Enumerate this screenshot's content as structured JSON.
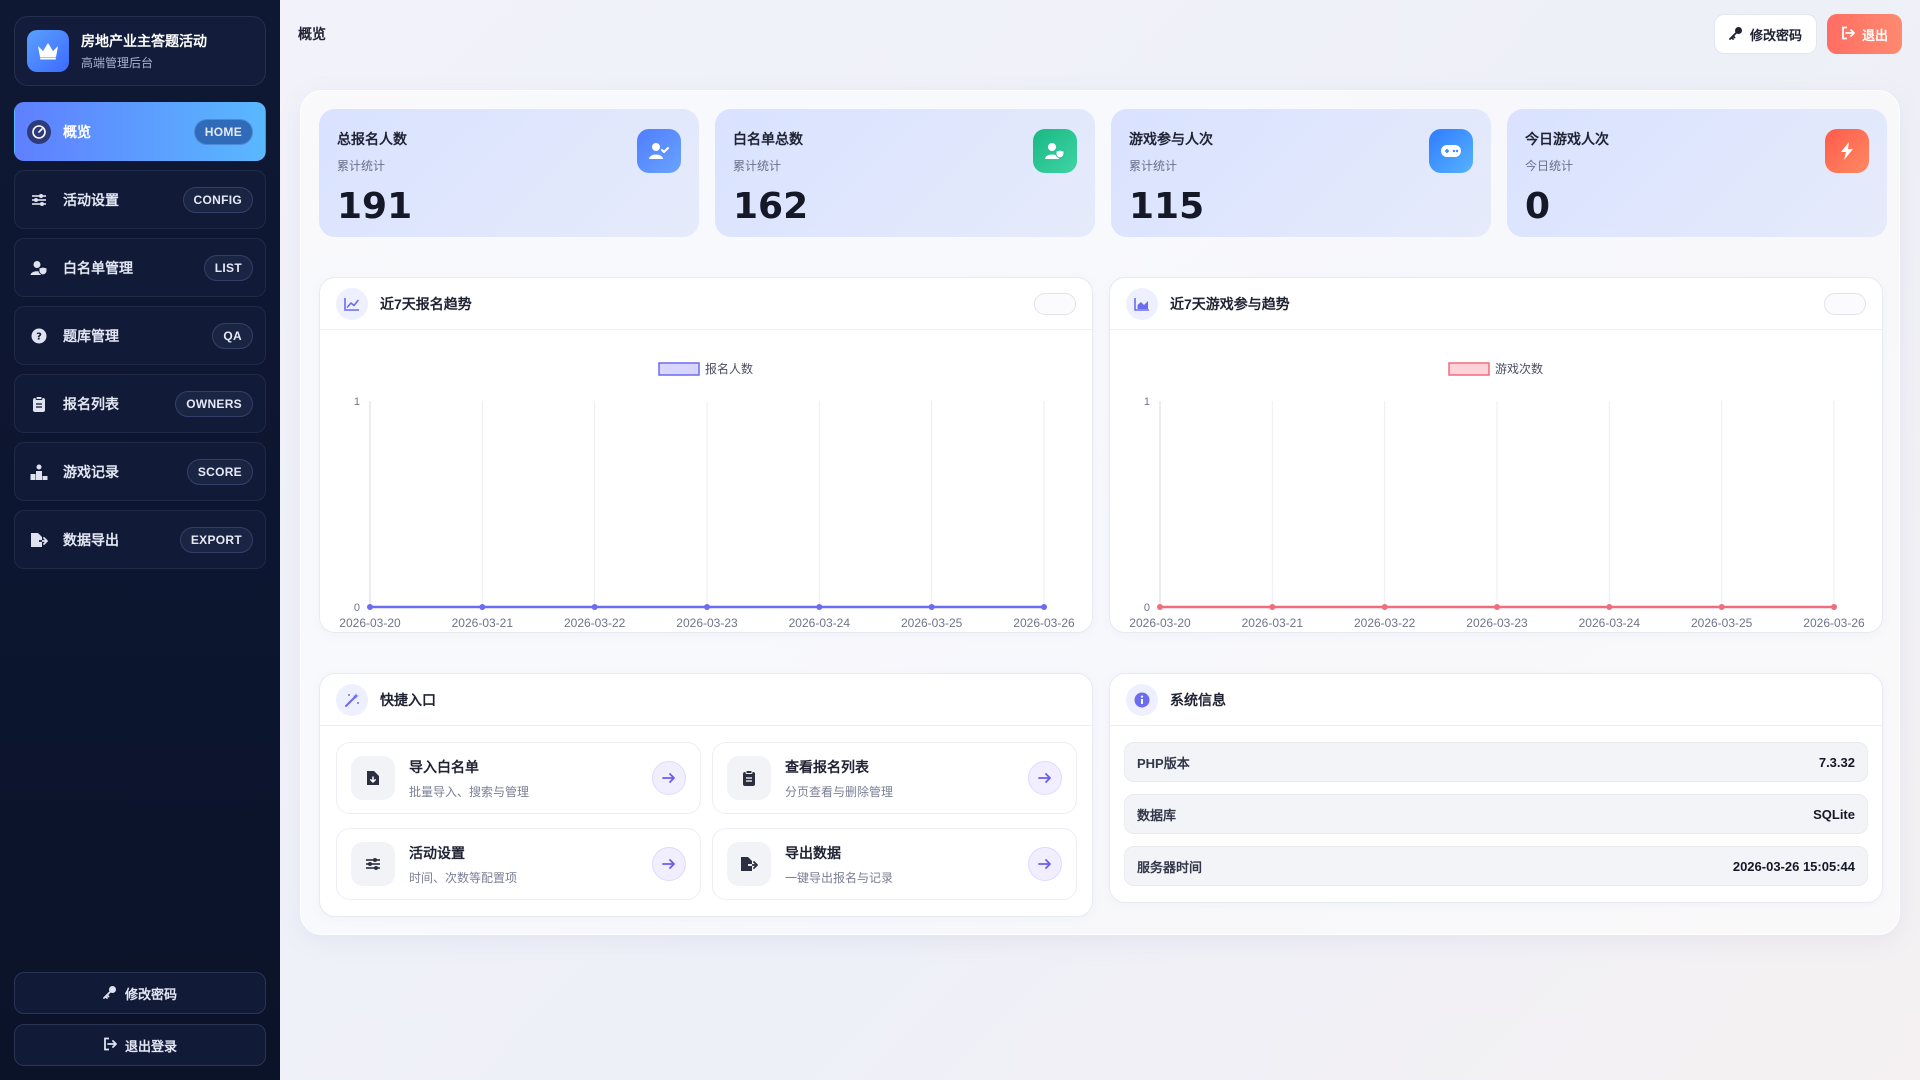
{
  "sidebar": {
    "brand_title": "房地产业主答题活动",
    "brand_subtitle": "高端管理后台",
    "items": [
      {
        "label": "概览",
        "badge": "HOME"
      },
      {
        "label": "活动设置",
        "badge": "CONFIG"
      },
      {
        "label": "白名单管理",
        "badge": "LIST"
      },
      {
        "label": "题库管理",
        "badge": "QA"
      },
      {
        "label": "报名列表",
        "badge": "OWNERS"
      },
      {
        "label": "游戏记录",
        "badge": "SCORE"
      },
      {
        "label": "数据导出",
        "badge": "EXPORT"
      }
    ],
    "change_password": "修改密码",
    "logout": "退出登录"
  },
  "topbar": {
    "title": "概览",
    "change_password": "修改密码",
    "logout": "退出"
  },
  "stats": [
    {
      "label": "总报名人数",
      "sub": "累计统计",
      "value": "191",
      "icon": "user-check-icon",
      "color": "#4f7dff"
    },
    {
      "label": "白名单总数",
      "sub": "累计统计",
      "value": "162",
      "icon": "user-shield-icon",
      "color": "#22c08f"
    },
    {
      "label": "游戏参与人次",
      "sub": "累计统计",
      "value": "115",
      "icon": "gamepad-icon",
      "color": "#3d8bff"
    },
    {
      "label": "今日游戏人次",
      "sub": "今日统计",
      "value": "0",
      "icon": "bolt-icon",
      "color": "#ff6a4d"
    }
  ],
  "charts_titles": {
    "signup": "近7天报名趋势",
    "game": "近7天游戏参与趋势"
  },
  "chart_data": [
    {
      "type": "line",
      "title": "近7天报名趋势",
      "categories": [
        "2026-03-20",
        "2026-03-21",
        "2026-03-22",
        "2026-03-23",
        "2026-03-24",
        "2026-03-25",
        "2026-03-26"
      ],
      "series": [
        {
          "name": "报名人数",
          "values": [
            0,
            0,
            0,
            0,
            0,
            0,
            0
          ],
          "color": "#6b6cf0",
          "fill": "#d8d6ff"
        }
      ],
      "yticks": [
        "1",
        "0"
      ],
      "ylim": [
        0,
        1
      ],
      "legend": "top-center",
      "grid": true
    },
    {
      "type": "line",
      "title": "近7天游戏参与趋势",
      "categories": [
        "2026-03-20",
        "2026-03-21",
        "2026-03-22",
        "2026-03-23",
        "2026-03-24",
        "2026-03-25",
        "2026-03-26"
      ],
      "series": [
        {
          "name": "游戏次数",
          "values": [
            0,
            0,
            0,
            0,
            0,
            0,
            0
          ],
          "color": "#f06d7d",
          "fill": "#ffd3d8"
        }
      ],
      "yticks": [
        "1",
        "0"
      ],
      "ylim": [
        0,
        1
      ],
      "legend": "top-center",
      "grid": true
    }
  ],
  "quick": {
    "title": "快捷入口",
    "items": [
      {
        "title": "导入白名单",
        "desc": "批量导入、搜索与管理",
        "icon": "file-import-icon"
      },
      {
        "title": "查看报名列表",
        "desc": "分页查看与删除管理",
        "icon": "clipboard-icon"
      },
      {
        "title": "活动设置",
        "desc": "时间、次数等配置项",
        "icon": "sliders-icon"
      },
      {
        "title": "导出数据",
        "desc": "一键导出报名与记录",
        "icon": "file-export-icon"
      }
    ]
  },
  "sysinfo": {
    "title": "系统信息",
    "rows": [
      {
        "key": "PHP版本",
        "value": "7.3.32"
      },
      {
        "key": "数据库",
        "value": "SQLite"
      },
      {
        "key": "服务器时间",
        "value": "2026-03-26 15:05:44"
      }
    ]
  },
  "colors": {
    "accent": "#5f7fff",
    "sidebar_bg": "#0f1833",
    "danger": "#ff6d63"
  }
}
